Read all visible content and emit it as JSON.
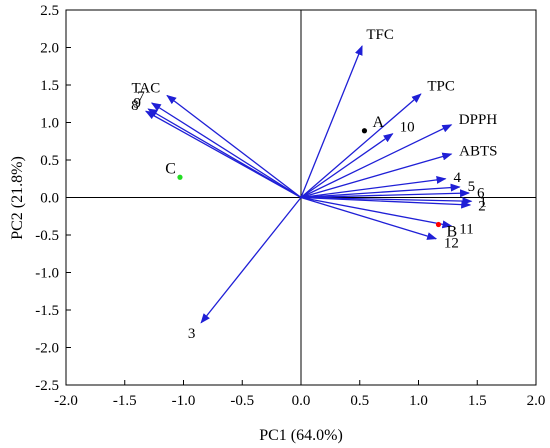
{
  "chart_data": {
    "type": "scatter",
    "subtype": "pca-biplot",
    "xlabel": "PC1 (64.0%)",
    "ylabel": "PC2 (21.8%)",
    "xlim": [
      -2.0,
      2.0
    ],
    "ylim": [
      -2.5,
      2.5
    ],
    "x_ticks": [
      "-2.0",
      "-1.5",
      "-1.0",
      "-0.5",
      "0.0",
      "0.5",
      "1.0",
      "1.5",
      "2.0"
    ],
    "y_ticks": [
      "2.5",
      "2.0",
      "1.5",
      "1.0",
      "0.5",
      "0.0",
      "-0.5",
      "-1.0",
      "-1.5",
      "-2.0",
      "-2.5"
    ],
    "grid": false,
    "zero_lines": true,
    "vector_color": "#1f1fd6",
    "loadings": [
      {
        "label": "TFC",
        "x": 0.52,
        "y": 2.02
      },
      {
        "label": "TPC",
        "x": 1.02,
        "y": 1.38
      },
      {
        "label": "DPPH",
        "x": 1.28,
        "y": 0.97
      },
      {
        "label": "ABTS",
        "x": 1.28,
        "y": 0.58
      },
      {
        "label": "4",
        "x": 1.23,
        "y": 0.25
      },
      {
        "label": "5",
        "x": 1.35,
        "y": 0.14
      },
      {
        "label": "6",
        "x": 1.43,
        "y": 0.06
      },
      {
        "label": "1",
        "x": 1.45,
        "y": -0.05
      },
      {
        "label": "2",
        "x": 1.44,
        "y": -0.1
      },
      {
        "label": "11",
        "x": 1.28,
        "y": -0.38
      },
      {
        "label": "12",
        "x": 1.15,
        "y": -0.55
      },
      {
        "label": "10",
        "x": 0.78,
        "y": 0.85
      },
      {
        "label": "TAC",
        "x": -1.14,
        "y": 1.36
      },
      {
        "label": "7",
        "x": -1.27,
        "y": 1.26
      },
      {
        "label": "9",
        "x": -1.3,
        "y": 1.18
      },
      {
        "label": "8",
        "x": -1.32,
        "y": 1.15
      },
      {
        "label": "3",
        "x": -0.85,
        "y": -1.67
      }
    ],
    "samples": [
      {
        "label": "A",
        "x": 0.54,
        "y": 0.89,
        "color": "#000000"
      },
      {
        "label": "B",
        "x": 1.17,
        "y": -0.36,
        "color": "#ff0000"
      },
      {
        "label": "C",
        "x": -1.03,
        "y": 0.27,
        "color": "#22dd22"
      }
    ]
  }
}
